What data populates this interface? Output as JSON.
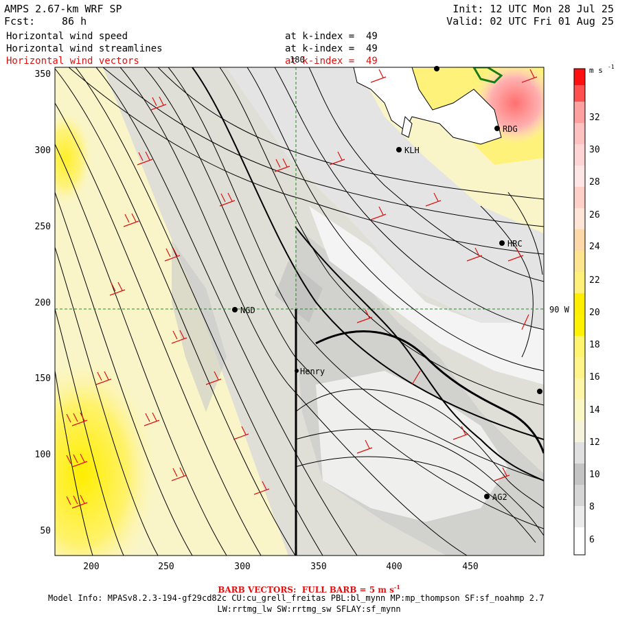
{
  "header": {
    "model": "AMPS 2.67-km WRF SP",
    "forecast_label": "Fcst:",
    "forecast_value": "86 h",
    "init": "Init: 12 UTC Mon 28 Jul 25",
    "valid": "Valid: 02 UTC Fri 01 Aug 25"
  },
  "fields": [
    {
      "name": "Horizontal wind speed",
      "level": "at k-index =  49"
    },
    {
      "name": "Horizontal wind streamlines",
      "level": "at k-index =  49"
    },
    {
      "name": "Horizontal wind vectors",
      "level": "at k-index =  49"
    }
  ],
  "map": {
    "x_ticks": [
      "200",
      "250",
      "300",
      "350",
      "400",
      "450"
    ],
    "y_ticks": [
      "350",
      "300",
      "250",
      "200",
      "150",
      "100",
      "50"
    ],
    "meridian_label": "180",
    "parallel_label": "90 W",
    "stations": [
      {
        "name": "KLH"
      },
      {
        "name": "RDG"
      },
      {
        "name": "HRC"
      },
      {
        "name": "NGD"
      },
      {
        "name": "Henry"
      },
      {
        "name": "AG2"
      }
    ]
  },
  "colorbar": {
    "unit": "m s",
    "unit_exp": "-1",
    "labels": [
      "32",
      "30",
      "28",
      "26",
      "24",
      "22",
      "20",
      "18",
      "16",
      "14",
      "12",
      "10",
      "8",
      "6"
    ],
    "colors": [
      "#ffffff",
      "#f0f0f0",
      "#dcdcdc",
      "#c8c8c8",
      "#f5f5dc",
      "#fff8b4",
      "#fff8b4",
      "#fff088",
      "#ffe040",
      "#ffff00",
      "#fff000",
      "#fff8b4",
      "#fcd9a0",
      "#ffe0e0",
      "#ffc8c8",
      "#ffb0b0",
      "#ff9090",
      "#ff6060",
      "#ff3030",
      "#ff0000"
    ]
  },
  "footer": {
    "barb": "BARB VECTORS:  FULL BARB = 5 m s",
    "barb_exp": "-1",
    "model_info": "Model Info: MPASv8.2.3-194-gf29cd82c CU:cu_grell_freitas PBL:bl_mynn MP:mp_thompson SF:sf_noahmp 2.7",
    "physics": "LW:rrtmg_lw SW:rrtmg_sw SFLAY:sf_mynn"
  }
}
